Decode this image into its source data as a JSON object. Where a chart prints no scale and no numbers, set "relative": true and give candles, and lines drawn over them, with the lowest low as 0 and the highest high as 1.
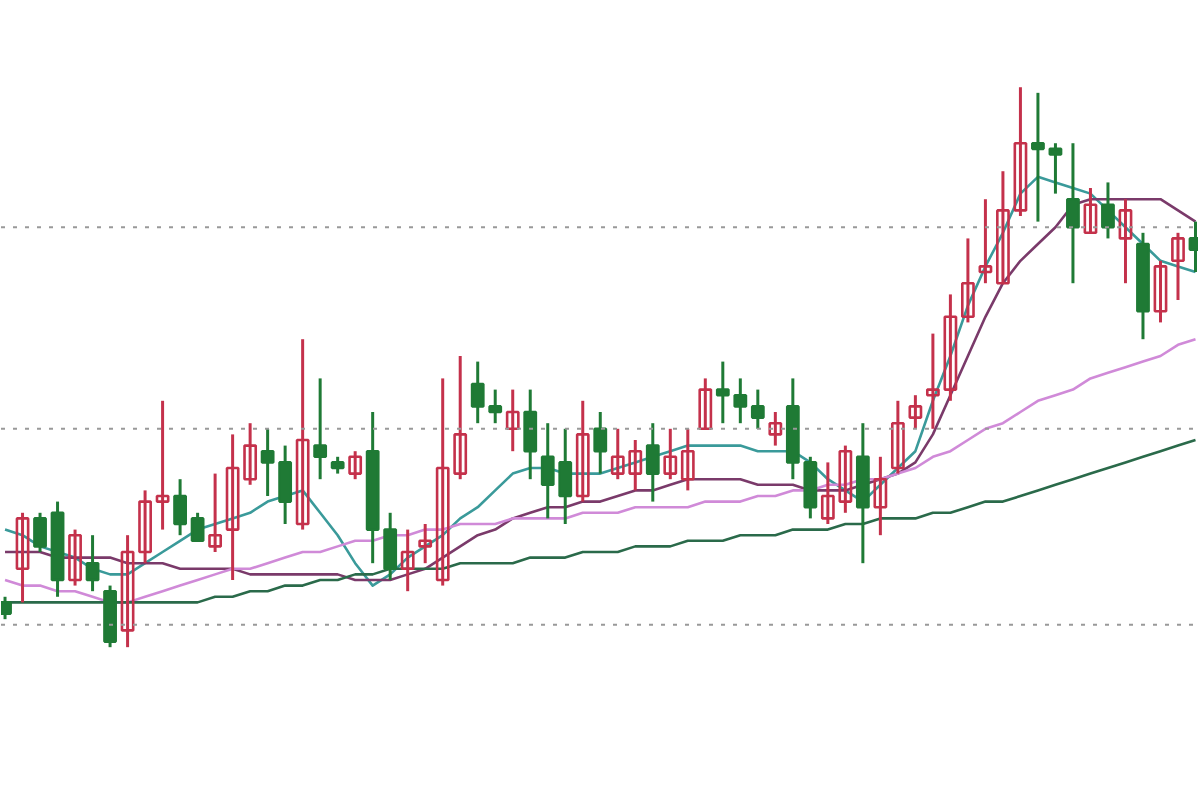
{
  "chart_data": {
    "type": "candlestick",
    "relative": true,
    "categories": [
      null,
      null,
      null,
      null,
      null,
      null,
      null,
      null,
      null,
      null,
      null,
      null,
      null,
      null,
      null,
      null,
      null,
      null,
      null,
      null,
      null,
      null,
      null,
      null,
      null,
      null,
      null,
      null,
      null,
      null,
      null,
      null,
      null,
      null,
      null,
      null,
      null,
      null,
      null,
      null,
      null,
      null,
      null,
      null,
      null,
      null,
      null,
      null,
      null,
      null,
      null,
      null,
      null,
      null,
      null,
      null,
      null,
      null,
      null,
      null,
      null,
      null,
      null,
      null,
      null,
      null,
      null,
      null,
      null
    ],
    "ohlc": [
      [
        0.08,
        0.09,
        0.05,
        0.06
      ],
      [
        0.14,
        0.24,
        0.08,
        0.23
      ],
      [
        0.23,
        0.24,
        0.17,
        0.18
      ],
      [
        0.24,
        0.26,
        0.09,
        0.12
      ],
      [
        0.12,
        0.21,
        0.11,
        0.2
      ],
      [
        0.15,
        0.2,
        0.1,
        0.12
      ],
      [
        0.1,
        0.11,
        0.0,
        0.01
      ],
      [
        0.03,
        0.2,
        0.0,
        0.17
      ],
      [
        0.17,
        0.28,
        0.15,
        0.26
      ],
      [
        0.26,
        0.44,
        0.21,
        0.27
      ],
      [
        0.27,
        0.3,
        0.2,
        0.22
      ],
      [
        0.23,
        0.24,
        0.19,
        0.19
      ],
      [
        0.18,
        0.31,
        0.17,
        0.2
      ],
      [
        0.21,
        0.38,
        0.12,
        0.32
      ],
      [
        0.3,
        0.4,
        0.29,
        0.36
      ],
      [
        0.35,
        0.39,
        0.27,
        0.33
      ],
      [
        0.33,
        0.36,
        0.22,
        0.26
      ],
      [
        0.22,
        0.55,
        0.21,
        0.37
      ],
      [
        0.36,
        0.48,
        0.3,
        0.34
      ],
      [
        0.33,
        0.34,
        0.31,
        0.32
      ],
      [
        0.31,
        0.35,
        0.3,
        0.34
      ],
      [
        0.35,
        0.42,
        0.15,
        0.21
      ],
      [
        0.21,
        0.24,
        0.12,
        0.14
      ],
      [
        0.14,
        0.21,
        0.1,
        0.17
      ],
      [
        0.18,
        0.22,
        0.15,
        0.19
      ],
      [
        0.12,
        0.48,
        0.11,
        0.32
      ],
      [
        0.31,
        0.52,
        0.3,
        0.38
      ],
      [
        0.47,
        0.51,
        0.4,
        0.43
      ],
      [
        0.43,
        0.46,
        0.4,
        0.42
      ],
      [
        0.39,
        0.46,
        0.35,
        0.42
      ],
      [
        0.42,
        0.46,
        0.3,
        0.35
      ],
      [
        0.34,
        0.4,
        0.23,
        0.29
      ],
      [
        0.33,
        0.39,
        0.22,
        0.27
      ],
      [
        0.27,
        0.44,
        0.26,
        0.38
      ],
      [
        0.39,
        0.42,
        0.31,
        0.35
      ],
      [
        0.31,
        0.39,
        0.3,
        0.34
      ],
      [
        0.31,
        0.37,
        0.28,
        0.35
      ],
      [
        0.36,
        0.4,
        0.26,
        0.31
      ],
      [
        0.31,
        0.39,
        0.3,
        0.34
      ],
      [
        0.3,
        0.39,
        0.28,
        0.35
      ],
      [
        0.39,
        0.48,
        0.39,
        0.46
      ],
      [
        0.46,
        0.51,
        0.4,
        0.45
      ],
      [
        0.45,
        0.48,
        0.4,
        0.43
      ],
      [
        0.43,
        0.46,
        0.39,
        0.41
      ],
      [
        0.38,
        0.42,
        0.36,
        0.4
      ],
      [
        0.43,
        0.48,
        0.3,
        0.33
      ],
      [
        0.33,
        0.34,
        0.23,
        0.25
      ],
      [
        0.23,
        0.33,
        0.22,
        0.27
      ],
      [
        0.26,
        0.36,
        0.24,
        0.35
      ],
      [
        0.34,
        0.4,
        0.15,
        0.25
      ],
      [
        0.25,
        0.34,
        0.2,
        0.3
      ],
      [
        0.32,
        0.44,
        0.31,
        0.4
      ],
      [
        0.41,
        0.45,
        0.39,
        0.43
      ],
      [
        0.45,
        0.56,
        0.39,
        0.46
      ],
      [
        0.46,
        0.63,
        0.44,
        0.59
      ],
      [
        0.59,
        0.73,
        0.58,
        0.65
      ],
      [
        0.67,
        0.8,
        0.65,
        0.68
      ],
      [
        0.65,
        0.85,
        0.65,
        0.78
      ],
      [
        0.78,
        1.0,
        0.77,
        0.9
      ],
      [
        0.9,
        0.99,
        0.76,
        0.89
      ],
      [
        0.89,
        0.9,
        0.81,
        0.88
      ],
      [
        0.8,
        0.9,
        0.65,
        0.75
      ],
      [
        0.74,
        0.82,
        0.74,
        0.79
      ],
      [
        0.79,
        0.83,
        0.73,
        0.75
      ],
      [
        0.73,
        0.8,
        0.65,
        0.78
      ],
      [
        0.72,
        0.74,
        0.55,
        0.6
      ],
      [
        0.6,
        0.69,
        0.58,
        0.68
      ],
      [
        0.69,
        0.74,
        0.62,
        0.73
      ],
      [
        0.73,
        0.76,
        0.67,
        0.71
      ]
    ],
    "colors": [
      "#1f7a35",
      "#c4314b",
      "#1f7a35",
      "#1f7a35",
      "#c4314b",
      "#1f7a35",
      "#1f7a35",
      "#c4314b",
      "#c4314b",
      "#c4314b",
      "#1f7a35",
      "#1f7a35",
      "#c4314b",
      "#c4314b",
      "#c4314b",
      "#1f7a35",
      "#1f7a35",
      "#c4314b",
      "#1f7a35",
      "#1f7a35",
      "#c4314b",
      "#1f7a35",
      "#1f7a35",
      "#c4314b",
      "#c4314b",
      "#c4314b",
      "#c4314b",
      "#1f7a35",
      "#1f7a35",
      "#c4314b",
      "#1f7a35",
      "#1f7a35",
      "#1f7a35",
      "#c4314b",
      "#1f7a35",
      "#c4314b",
      "#c4314b",
      "#1f7a35",
      "#c4314b",
      "#c4314b",
      "#c4314b",
      "#1f7a35",
      "#1f7a35",
      "#1f7a35",
      "#c4314b",
      "#1f7a35",
      "#1f7a35",
      "#c4314b",
      "#c4314b",
      "#1f7a35",
      "#c4314b",
      "#c4314b",
      "#c4314b",
      "#c4314b",
      "#c4314b",
      "#c4314b",
      "#c4314b",
      "#c4314b",
      "#c4314b",
      "#1f7a35",
      "#1f7a35",
      "#1f7a35",
      "#c4314b",
      "#1f7a35",
      "#c4314b",
      "#1f7a35",
      "#c4314b",
      "#c4314b",
      "#1f7a35"
    ],
    "series": [
      {
        "type": "line",
        "color": "#3a9a9a",
        "values": [
          0.21,
          0.2,
          0.18,
          0.17,
          0.16,
          0.14,
          0.13,
          0.13,
          0.15,
          0.17,
          0.19,
          0.21,
          0.22,
          0.23,
          0.24,
          0.26,
          0.27,
          0.28,
          0.24,
          0.2,
          0.15,
          0.11,
          0.13,
          0.16,
          0.18,
          0.2,
          0.23,
          0.25,
          0.28,
          0.31,
          0.32,
          0.32,
          0.31,
          0.31,
          0.31,
          0.32,
          0.33,
          0.34,
          0.35,
          0.36,
          0.36,
          0.36,
          0.36,
          0.35,
          0.35,
          0.35,
          0.33,
          0.3,
          0.28,
          0.26,
          0.29,
          0.32,
          0.35,
          0.44,
          0.52,
          0.61,
          0.68,
          0.74,
          0.81,
          0.84,
          0.83,
          0.82,
          0.81,
          0.78,
          0.75,
          0.72,
          0.69,
          0.68,
          0.67
        ]
      },
      {
        "type": "line",
        "color": "#7a3a6a",
        "values": [
          0.17,
          0.17,
          0.17,
          0.16,
          0.16,
          0.16,
          0.16,
          0.15,
          0.15,
          0.15,
          0.14,
          0.14,
          0.14,
          0.14,
          0.13,
          0.13,
          0.13,
          0.13,
          0.13,
          0.13,
          0.12,
          0.12,
          0.12,
          0.13,
          0.14,
          0.16,
          0.18,
          0.2,
          0.21,
          0.23,
          0.24,
          0.25,
          0.25,
          0.26,
          0.26,
          0.27,
          0.28,
          0.28,
          0.29,
          0.3,
          0.3,
          0.3,
          0.3,
          0.29,
          0.29,
          0.29,
          0.28,
          0.28,
          0.28,
          0.29,
          0.3,
          0.31,
          0.33,
          0.38,
          0.45,
          0.52,
          0.59,
          0.65,
          0.69,
          0.72,
          0.75,
          0.79,
          0.8,
          0.8,
          0.8,
          0.8,
          0.8,
          0.78,
          0.76
        ]
      },
      {
        "type": "line",
        "color": "#d08ad8",
        "values": [
          0.12,
          0.11,
          0.11,
          0.1,
          0.1,
          0.09,
          0.08,
          0.08,
          0.09,
          0.1,
          0.11,
          0.12,
          0.13,
          0.14,
          0.14,
          0.15,
          0.16,
          0.17,
          0.17,
          0.18,
          0.19,
          0.19,
          0.2,
          0.2,
          0.21,
          0.21,
          0.22,
          0.22,
          0.22,
          0.23,
          0.23,
          0.23,
          0.23,
          0.24,
          0.24,
          0.24,
          0.25,
          0.25,
          0.25,
          0.25,
          0.26,
          0.26,
          0.26,
          0.27,
          0.27,
          0.28,
          0.28,
          0.29,
          0.29,
          0.3,
          0.3,
          0.31,
          0.32,
          0.34,
          0.35,
          0.37,
          0.39,
          0.4,
          0.42,
          0.44,
          0.45,
          0.46,
          0.48,
          0.49,
          0.5,
          0.51,
          0.52,
          0.54,
          0.55
        ]
      },
      {
        "type": "line",
        "color": "#2a6a4a",
        "values": [
          0.08,
          0.08,
          0.08,
          0.08,
          0.08,
          0.08,
          0.08,
          0.08,
          0.08,
          0.08,
          0.08,
          0.08,
          0.09,
          0.09,
          0.1,
          0.1,
          0.11,
          0.11,
          0.12,
          0.12,
          0.13,
          0.13,
          0.14,
          0.14,
          0.14,
          0.14,
          0.15,
          0.15,
          0.15,
          0.15,
          0.16,
          0.16,
          0.16,
          0.17,
          0.17,
          0.17,
          0.18,
          0.18,
          0.18,
          0.19,
          0.19,
          0.19,
          0.2,
          0.2,
          0.2,
          0.21,
          0.21,
          0.21,
          0.22,
          0.22,
          0.23,
          0.23,
          0.23,
          0.24,
          0.24,
          0.25,
          0.26,
          0.26,
          0.27,
          0.28,
          0.29,
          0.3,
          0.31,
          0.32,
          0.33,
          0.34,
          0.35,
          0.36,
          0.37
        ]
      }
    ],
    "ref_lines": [
      {
        "axis": "y",
        "value": 0.75,
        "color": "#999999",
        "line_style": "dotted"
      },
      {
        "axis": "y",
        "value": 0.39,
        "color": "#999999",
        "line_style": "dotted"
      },
      {
        "axis": "y",
        "value": 0.04,
        "color": "#999999",
        "line_style": "dotted"
      }
    ]
  }
}
